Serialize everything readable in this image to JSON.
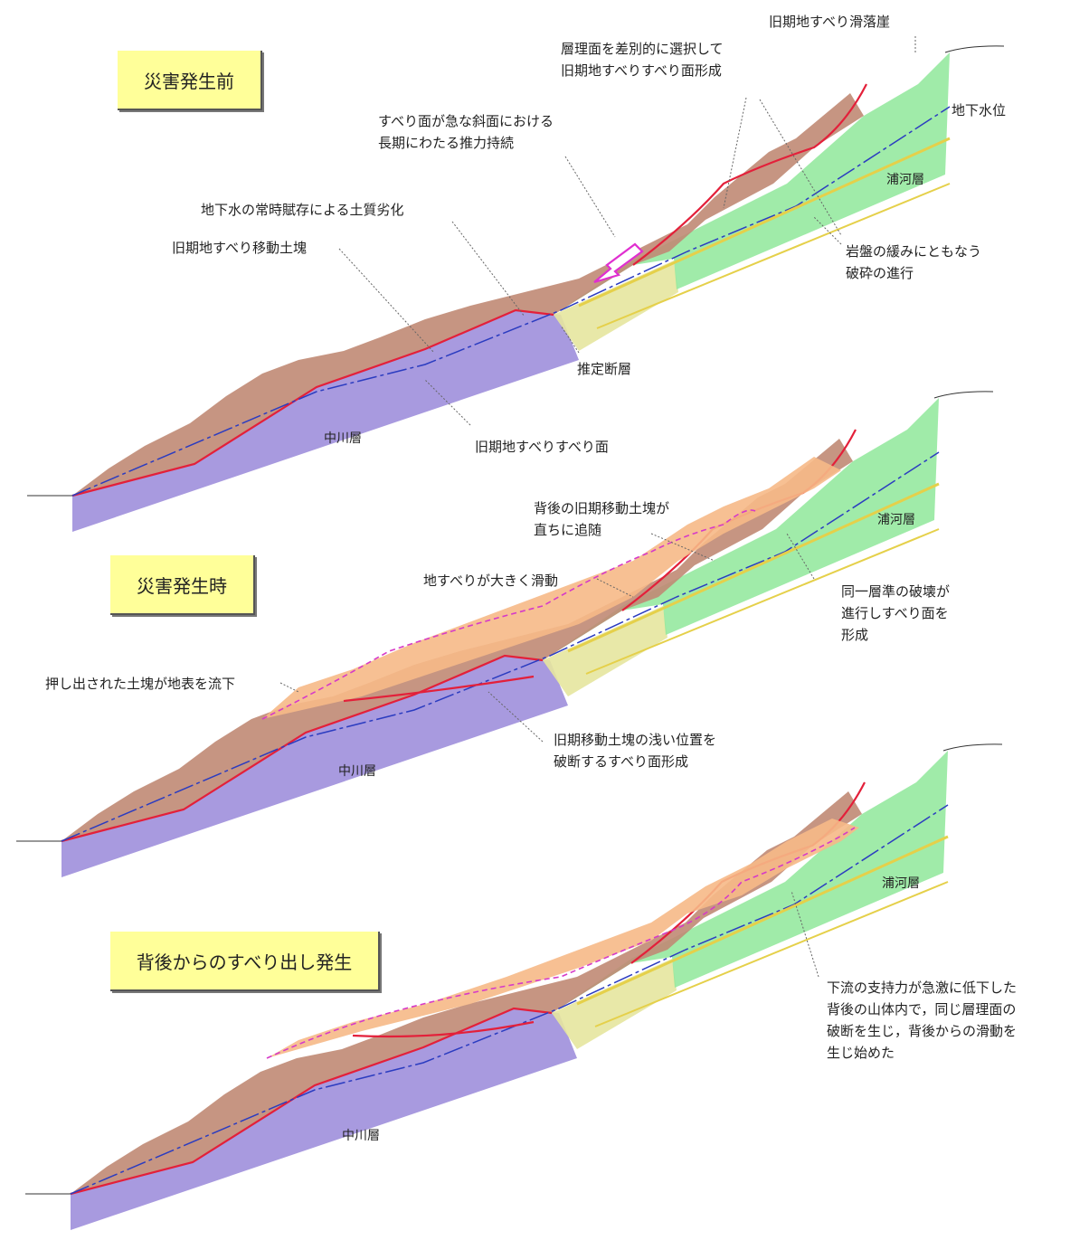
{
  "stages": {
    "before": "災害発生前",
    "during": "災害発生時",
    "after": "背後からのすべり出し発生"
  },
  "layers": {
    "nakagawa": "中川層",
    "urakawa": "浦河層"
  },
  "labels": {
    "old_scarp": "旧期地すべり滑落崖",
    "bedding_select_1": "層理面を差別的に選択して",
    "bedding_select_2": "旧期地すべりすべり面形成",
    "groundwater_level": "地下水位",
    "steep_push_1": "すべり面が急な斜面における",
    "steep_push_2": "長期にわたる推力持続",
    "gw_degradation": "地下水の常時賦存による土質劣化",
    "old_mass": "旧期地すべり移動土塊",
    "rock_loosen_1": "岩盤の緩みにともなう",
    "rock_loosen_2": "破砕の進行",
    "fault": "推定断層",
    "old_slip_surface": "旧期地すべりすべり面",
    "follow_1": "背後の旧期移動土塊が",
    "follow_2": "直ちに追随",
    "big_slide": "地すべりが大きく滑動",
    "same_layer_1": "同一層準の破壊が",
    "same_layer_2": "進行しすべり面を",
    "same_layer_3": "形成",
    "pushed_out": "押し出された土塊が地表を流下",
    "shallow_1": "旧期移動土塊の浅い位置を",
    "shallow_2": "破断するすべり面形成",
    "downstream_1": "下流の支持力が急激に低下した",
    "downstream_2": "背後の山体内で，同じ層理面の",
    "downstream_3": "破断を生じ，背後からの滑動を",
    "downstream_4": "生じ始めた"
  },
  "colors": {
    "nakagawa": "#9f8fdc",
    "urakawa": "#8fe89a",
    "old_mass": "#c08a74",
    "moved_mass": "#f6b987",
    "fault_zone": "#e3e49a",
    "slip_line": "#e3203a",
    "groundwater": "#2b3cc0",
    "bedding": "#e5d04a",
    "former_surface": "#d63ac8"
  }
}
